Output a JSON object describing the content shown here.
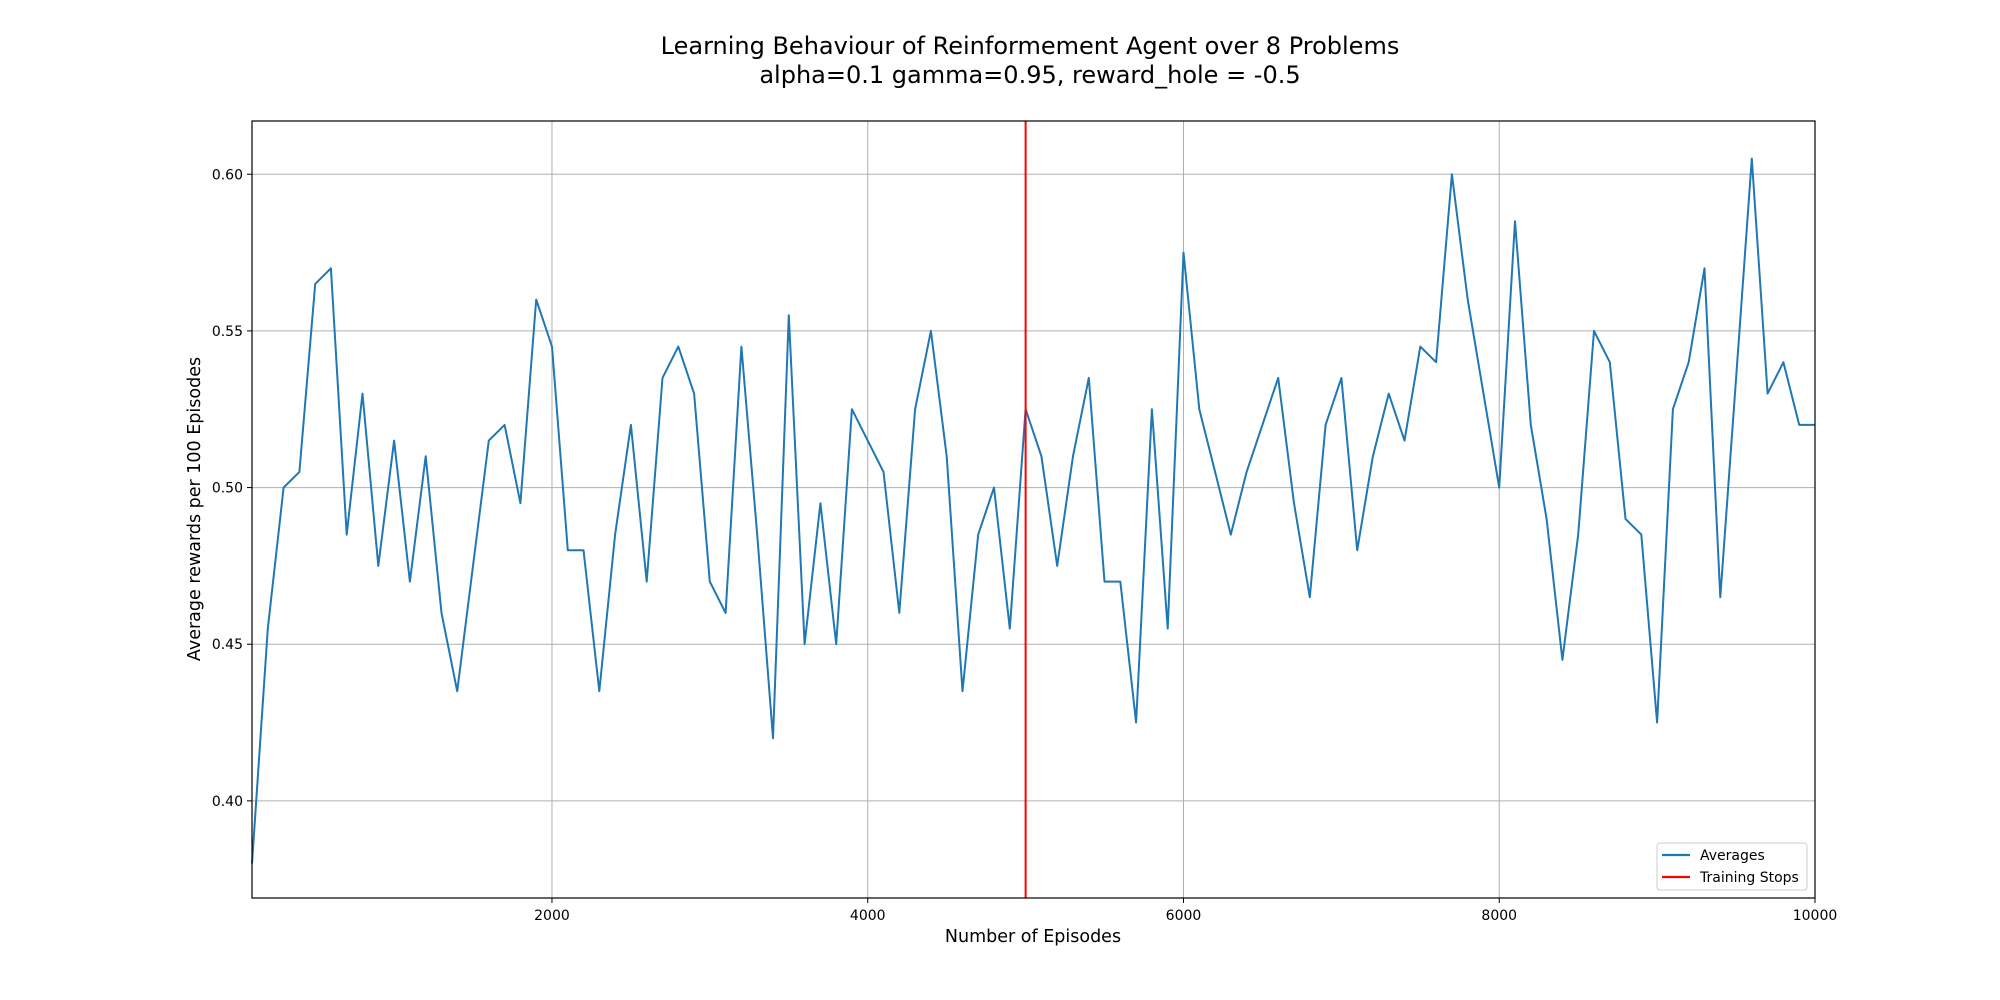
{
  "chart_data": {
    "type": "line",
    "title": "Learning Behaviour of Reinformement Agent over 8 Problems",
    "subtitle": "alpha=0.1 gamma=0.95, reward_hole = -0.5",
    "xlabel": "Number of Episodes",
    "ylabel": "Average rewards per 100 Episodes",
    "xlim": [
      100,
      10000
    ],
    "ylim": [
      0.369,
      0.617
    ],
    "xticks": [
      2000,
      4000,
      6000,
      8000,
      10000
    ],
    "xtick_labels": [
      "2000",
      "4000",
      "6000",
      "8000",
      "10000"
    ],
    "yticks": [
      0.4,
      0.45,
      0.5,
      0.55,
      0.6
    ],
    "ytick_labels": [
      "0.40",
      "0.45",
      "0.50",
      "0.55",
      "0.60"
    ],
    "grid": true,
    "legend_position": "bottom-right",
    "series": [
      {
        "name": "Averages",
        "color": "#1f77b4",
        "x": [
          100,
          200,
          300,
          400,
          500,
          600,
          700,
          800,
          900,
          1000,
          1100,
          1200,
          1300,
          1400,
          1500,
          1600,
          1700,
          1800,
          1900,
          2000,
          2100,
          2200,
          2300,
          2400,
          2500,
          2600,
          2700,
          2800,
          2900,
          3000,
          3100,
          3200,
          3300,
          3400,
          3500,
          3600,
          3700,
          3800,
          3900,
          4000,
          4100,
          4200,
          4300,
          4400,
          4500,
          4600,
          4700,
          4800,
          4900,
          5000,
          5100,
          5200,
          5300,
          5400,
          5500,
          5600,
          5700,
          5800,
          5900,
          6000,
          6100,
          6200,
          6300,
          6400,
          6500,
          6600,
          6700,
          6800,
          6900,
          7000,
          7100,
          7200,
          7300,
          7400,
          7500,
          7600,
          7700,
          7800,
          7900,
          8000,
          8100,
          8200,
          8300,
          8400,
          8500,
          8600,
          8700,
          8800,
          8900,
          9000,
          9100,
          9200,
          9300,
          9400,
          9500,
          9600,
          9700,
          9800,
          9900,
          10000
        ],
        "values": [
          0.38,
          0.455,
          0.5,
          0.505,
          0.565,
          0.57,
          0.485,
          0.53,
          0.475,
          0.515,
          0.47,
          0.51,
          0.46,
          0.435,
          0.475,
          0.515,
          0.52,
          0.495,
          0.56,
          0.545,
          0.48,
          0.48,
          0.435,
          0.485,
          0.52,
          0.47,
          0.535,
          0.545,
          0.53,
          0.47,
          0.46,
          0.545,
          0.485,
          0.42,
          0.555,
          0.45,
          0.495,
          0.45,
          0.525,
          0.515,
          0.505,
          0.46,
          0.525,
          0.55,
          0.51,
          0.435,
          0.485,
          0.5,
          0.455,
          0.525,
          0.51,
          0.475,
          0.51,
          0.535,
          0.47,
          0.47,
          0.425,
          0.525,
          0.455,
          0.575,
          0.525,
          0.505,
          0.485,
          0.505,
          0.52,
          0.535,
          0.495,
          0.465,
          0.52,
          0.535,
          0.48,
          0.51,
          0.53,
          0.515,
          0.545,
          0.54,
          0.6,
          0.56,
          0.53,
          0.5,
          0.585,
          0.52,
          0.49,
          0.445,
          0.485,
          0.55,
          0.54,
          0.49,
          0.485,
          0.425,
          0.525,
          0.54,
          0.57,
          0.465,
          0.535,
          0.605,
          0.53,
          0.54,
          0.52,
          0.52
        ]
      }
    ],
    "vlines": [
      {
        "name": "Training Stops",
        "x": 5000,
        "color": "#ff0000"
      }
    ]
  }
}
